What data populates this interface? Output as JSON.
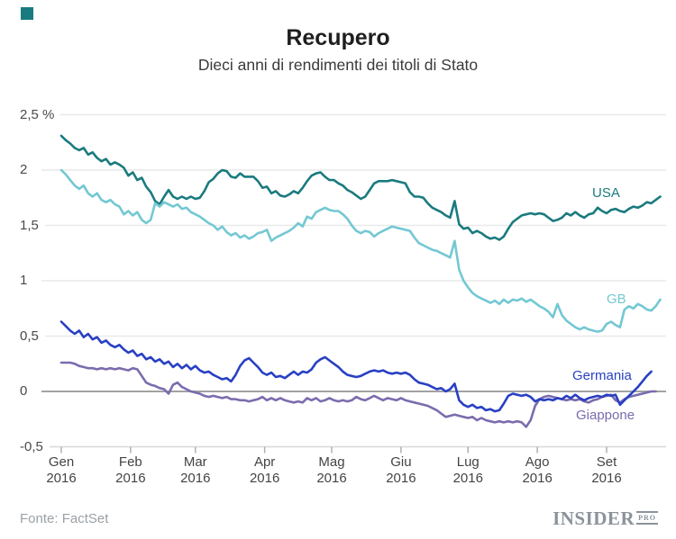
{
  "title": "Recupero",
  "subtitle": "Dieci anni di rendimenti dei titoli di Stato",
  "brand_square_color": "#1a7b7f",
  "footer": {
    "source": "Fonte: FactSet",
    "logo_main": "INSIDER",
    "logo_sub": "PRO"
  },
  "colors": {
    "gridline": "#e9e9e9",
    "zero_line": "#a2a2a2",
    "axis_line": "#d7d7d7",
    "tick": "#b0b0b0",
    "axis_text": "#474747"
  },
  "chart_data": {
    "type": "line",
    "title": "Recupero",
    "subtitle": "Dieci anni di rendimenti dei titoli di Stato",
    "unit": "%",
    "ylim": [
      -0.5,
      2.5
    ],
    "grid": true,
    "legend_position": "end-of-line-labels",
    "yticks": [
      {
        "label": "2,5 %",
        "value": 2.5
      },
      {
        "label": "2",
        "value": 2
      },
      {
        "label": "1,5",
        "value": 1.5
      },
      {
        "label": "1",
        "value": 1
      },
      {
        "label": "0,5",
        "value": 0.5
      },
      {
        "label": "0",
        "value": 0
      },
      {
        "label": "-0,5",
        "value": -0.5
      }
    ],
    "x_tick_days": [
      0,
      31,
      60,
      91,
      121,
      152,
      182,
      213,
      244
    ],
    "x_tick_labels": [
      {
        "line1": "Gen",
        "line2": "2016"
      },
      {
        "line1": "Feb",
        "line2": "2016"
      },
      {
        "line1": "Mar",
        "line2": "2016"
      },
      {
        "line1": "Apr",
        "line2": "2016"
      },
      {
        "line1": "Mag",
        "line2": "2016"
      },
      {
        "line1": "Giu",
        "line2": "2016"
      },
      {
        "line1": "Lug",
        "line2": "2016"
      },
      {
        "line1": "Ago",
        "line2": "2016"
      },
      {
        "line1": "Set",
        "line2": "2016"
      }
    ],
    "sample_interval_days": 2,
    "series": [
      {
        "name": "USA",
        "color": "#1a7b7f",
        "values": [
          2.31,
          2.27,
          2.24,
          2.2,
          2.18,
          2.2,
          2.14,
          2.16,
          2.11,
          2.08,
          2.1,
          2.05,
          2.07,
          2.05,
          2.02,
          1.95,
          1.98,
          1.91,
          1.93,
          1.85,
          1.8,
          1.72,
          1.69,
          1.76,
          1.82,
          1.76,
          1.74,
          1.76,
          1.74,
          1.76,
          1.74,
          1.75,
          1.81,
          1.89,
          1.92,
          1.97,
          2.0,
          1.99,
          1.94,
          1.93,
          1.97,
          1.94,
          1.94,
          1.94,
          1.9,
          1.84,
          1.85,
          1.79,
          1.81,
          1.77,
          1.76,
          1.78,
          1.81,
          1.79,
          1.84,
          1.9,
          1.95,
          1.97,
          1.98,
          1.94,
          1.91,
          1.91,
          1.88,
          1.86,
          1.82,
          1.8,
          1.77,
          1.74,
          1.76,
          1.82,
          1.88,
          1.9,
          1.9,
          1.9,
          1.91,
          1.9,
          1.89,
          1.88,
          1.8,
          1.76,
          1.76,
          1.75,
          1.7,
          1.66,
          1.64,
          1.62,
          1.59,
          1.57,
          1.72,
          1.51,
          1.47,
          1.48,
          1.43,
          1.45,
          1.43,
          1.4,
          1.38,
          1.39,
          1.37,
          1.4,
          1.47,
          1.53,
          1.56,
          1.59,
          1.6,
          1.61,
          1.6,
          1.61,
          1.6,
          1.57,
          1.54,
          1.55,
          1.57,
          1.61,
          1.59,
          1.62,
          1.59,
          1.57,
          1.6,
          1.61,
          1.66,
          1.63,
          1.61,
          1.64,
          1.65,
          1.63,
          1.62,
          1.65,
          1.67,
          1.66,
          1.68,
          1.71,
          1.7,
          1.73,
          1.76
        ]
      },
      {
        "name": "GB",
        "color": "#73c8d3",
        "values": [
          2.0,
          1.96,
          1.91,
          1.86,
          1.83,
          1.86,
          1.79,
          1.76,
          1.79,
          1.73,
          1.71,
          1.73,
          1.69,
          1.67,
          1.6,
          1.63,
          1.59,
          1.62,
          1.55,
          1.52,
          1.55,
          1.7,
          1.67,
          1.71,
          1.69,
          1.67,
          1.69,
          1.65,
          1.66,
          1.62,
          1.6,
          1.58,
          1.55,
          1.52,
          1.5,
          1.46,
          1.49,
          1.44,
          1.41,
          1.43,
          1.39,
          1.41,
          1.38,
          1.4,
          1.43,
          1.44,
          1.46,
          1.36,
          1.39,
          1.41,
          1.43,
          1.45,
          1.48,
          1.52,
          1.49,
          1.58,
          1.56,
          1.62,
          1.64,
          1.66,
          1.64,
          1.63,
          1.63,
          1.6,
          1.56,
          1.5,
          1.45,
          1.43,
          1.45,
          1.44,
          1.4,
          1.43,
          1.45,
          1.47,
          1.49,
          1.48,
          1.47,
          1.46,
          1.45,
          1.39,
          1.34,
          1.32,
          1.3,
          1.28,
          1.27,
          1.25,
          1.23,
          1.21,
          1.36,
          1.1,
          1.0,
          0.94,
          0.89,
          0.86,
          0.84,
          0.82,
          0.8,
          0.82,
          0.79,
          0.83,
          0.8,
          0.83,
          0.82,
          0.84,
          0.81,
          0.83,
          0.8,
          0.77,
          0.75,
          0.72,
          0.67,
          0.79,
          0.69,
          0.64,
          0.61,
          0.58,
          0.56,
          0.58,
          0.56,
          0.55,
          0.54,
          0.55,
          0.61,
          0.63,
          0.6,
          0.58,
          0.74,
          0.77,
          0.75,
          0.79,
          0.77,
          0.74,
          0.73,
          0.77,
          0.83
        ]
      },
      {
        "name": "Giappone",
        "color": "#7b6cae",
        "values": [
          0.26,
          0.26,
          0.26,
          0.25,
          0.23,
          0.22,
          0.21,
          0.21,
          0.2,
          0.21,
          0.2,
          0.21,
          0.2,
          0.21,
          0.2,
          0.19,
          0.21,
          0.2,
          0.14,
          0.08,
          0.06,
          0.05,
          0.03,
          0.02,
          -0.02,
          0.06,
          0.08,
          0.04,
          0.02,
          0.0,
          -0.01,
          -0.02,
          -0.04,
          -0.05,
          -0.04,
          -0.05,
          -0.06,
          -0.05,
          -0.07,
          -0.07,
          -0.08,
          -0.08,
          -0.09,
          -0.08,
          -0.07,
          -0.05,
          -0.08,
          -0.06,
          -0.08,
          -0.06,
          -0.08,
          -0.09,
          -0.1,
          -0.09,
          -0.1,
          -0.06,
          -0.08,
          -0.06,
          -0.09,
          -0.08,
          -0.06,
          -0.08,
          -0.09,
          -0.08,
          -0.09,
          -0.08,
          -0.05,
          -0.07,
          -0.08,
          -0.06,
          -0.04,
          -0.06,
          -0.08,
          -0.06,
          -0.07,
          -0.08,
          -0.06,
          -0.08,
          -0.09,
          -0.1,
          -0.11,
          -0.12,
          -0.13,
          -0.15,
          -0.17,
          -0.2,
          -0.23,
          -0.22,
          -0.21,
          -0.22,
          -0.23,
          -0.24,
          -0.23,
          -0.26,
          -0.24,
          -0.26,
          -0.27,
          -0.28,
          -0.27,
          -0.28,
          -0.27,
          -0.28,
          -0.27,
          -0.28,
          -0.32,
          -0.26,
          -0.13,
          -0.07,
          -0.05,
          -0.04,
          -0.05,
          -0.06,
          -0.07,
          -0.08,
          -0.07,
          -0.08,
          -0.07,
          -0.09,
          -0.1,
          -0.08,
          -0.07,
          -0.05,
          -0.04,
          -0.03,
          -0.08,
          -0.1,
          -0.07,
          -0.05,
          -0.04,
          -0.03,
          -0.02,
          -0.01,
          0.0,
          0.0
        ]
      },
      {
        "name": "Germania",
        "color": "#2940c3",
        "values": [
          0.63,
          0.59,
          0.55,
          0.52,
          0.55,
          0.49,
          0.52,
          0.47,
          0.49,
          0.44,
          0.46,
          0.42,
          0.4,
          0.42,
          0.38,
          0.35,
          0.37,
          0.32,
          0.34,
          0.29,
          0.31,
          0.27,
          0.29,
          0.25,
          0.27,
          0.22,
          0.25,
          0.21,
          0.24,
          0.2,
          0.23,
          0.19,
          0.17,
          0.18,
          0.15,
          0.13,
          0.11,
          0.12,
          0.09,
          0.15,
          0.23,
          0.28,
          0.3,
          0.26,
          0.22,
          0.17,
          0.15,
          0.17,
          0.13,
          0.14,
          0.12,
          0.15,
          0.18,
          0.15,
          0.18,
          0.17,
          0.2,
          0.26,
          0.29,
          0.31,
          0.28,
          0.25,
          0.22,
          0.18,
          0.15,
          0.14,
          0.13,
          0.14,
          0.16,
          0.18,
          0.19,
          0.18,
          0.19,
          0.17,
          0.16,
          0.17,
          0.16,
          0.17,
          0.15,
          0.11,
          0.08,
          0.07,
          0.06,
          0.04,
          0.02,
          0.03,
          0.0,
          0.02,
          0.07,
          -0.08,
          -0.12,
          -0.14,
          -0.12,
          -0.15,
          -0.14,
          -0.17,
          -0.16,
          -0.18,
          -0.17,
          -0.11,
          -0.04,
          -0.02,
          -0.03,
          -0.04,
          -0.03,
          -0.05,
          -0.09,
          -0.07,
          -0.08,
          -0.07,
          -0.08,
          -0.06,
          -0.07,
          -0.04,
          -0.06,
          -0.03,
          -0.06,
          -0.08,
          -0.06,
          -0.05,
          -0.04,
          -0.05,
          -0.03,
          -0.04,
          -0.03,
          -0.12,
          -0.08,
          -0.04,
          0.0,
          0.04,
          0.09,
          0.14,
          0.18
        ]
      }
    ],
    "series_end_labels": [
      "USA",
      "GB",
      "Germania",
      "Giappone"
    ],
    "source": "Fonte: FactSet"
  }
}
